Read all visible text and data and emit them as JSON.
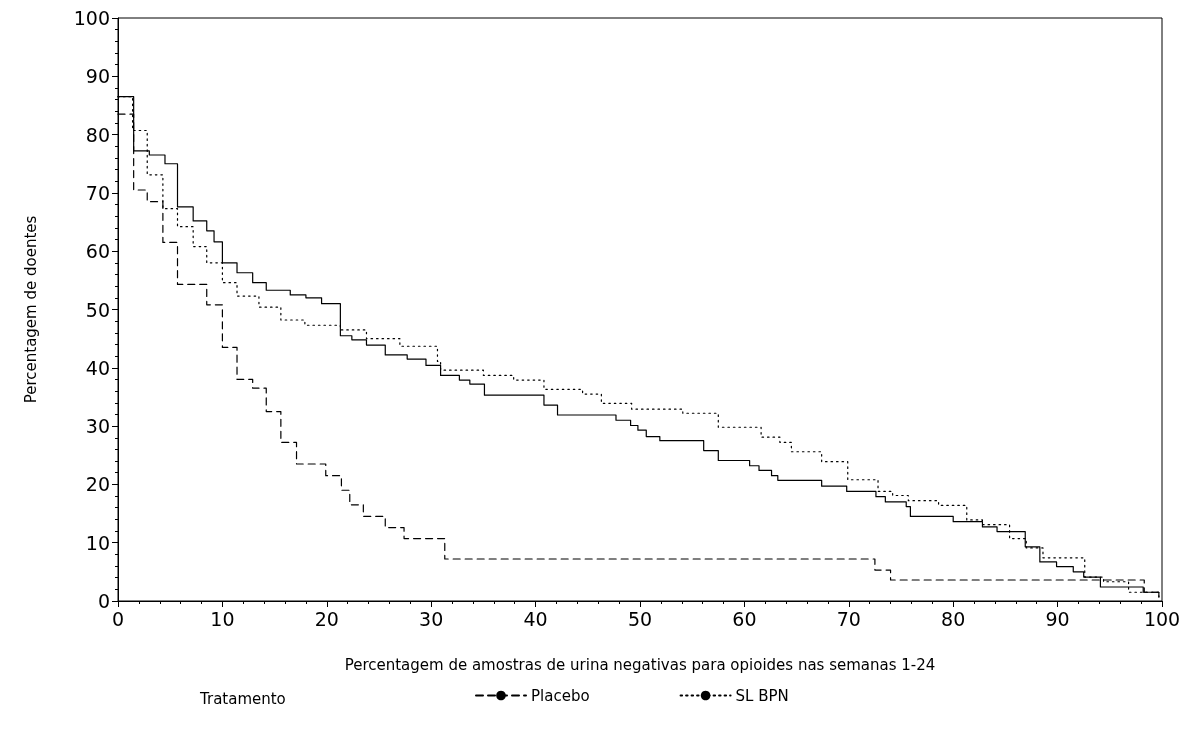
{
  "chart_data": {
    "type": "step",
    "xlabel": "Percentagem de amostras de urina negativas para opioides nas semanas 1-24",
    "ylabel": "Percentagem de doentes",
    "legend_title": "Tratamento",
    "xlim": [
      0,
      100
    ],
    "ylim": [
      0,
      100
    ],
    "xticks": [
      0,
      10,
      20,
      30,
      40,
      50,
      60,
      70,
      80,
      90,
      100
    ],
    "yticks": [
      0,
      10,
      20,
      30,
      40,
      50,
      60,
      70,
      80,
      90,
      100
    ],
    "grid": false,
    "legend": "bottom",
    "marker": "none",
    "series": [
      {
        "color": "#000000",
        "line_style": "solid",
        "x": [
          0,
          1.5,
          3,
          4.5,
          5.7,
          7.2,
          8.5,
          9.2,
          10,
          11.4,
          12.9,
          14.2,
          16.5,
          18,
          19.5,
          21.3,
          22.4,
          23.8,
          25.6,
          27.7,
          29.5,
          30.9,
          32.7,
          33.7,
          35.1,
          40.8,
          42.1,
          47.7,
          49.1,
          49.8,
          50.6,
          51.9,
          56.1,
          57.5,
          60.5,
          61.4,
          62.6,
          63.2,
          67.4,
          69.8,
          72.6,
          73.5,
          75.5,
          75.9,
          80,
          82.8,
          84.2,
          86.9,
          88.3,
          89.9,
          91.5,
          92.5,
          94.1,
          98.2,
          99.7
        ],
        "values": [
          86.5,
          77.2,
          76.5,
          75,
          67.6,
          65.2,
          63.5,
          61.6,
          58,
          56.3,
          54.6,
          53.3,
          52.5,
          52,
          51,
          45.5,
          44.8,
          43.9,
          42.2,
          41.5,
          40.4,
          38.7,
          37.9,
          37.2,
          35.3,
          33.6,
          31.9,
          31,
          30.1,
          29.3,
          28.2,
          27.5,
          25.8,
          24.1,
          23.2,
          22.4,
          21.5,
          20.7,
          19.7,
          18.8,
          17.9,
          17,
          16.2,
          14.5,
          13.6,
          12.7,
          11.9,
          9.3,
          6.7,
          5.9,
          5,
          4.1,
          2.4,
          1.5,
          0.7
        ]
      },
      {
        "name": "Placebo",
        "color": "#000000",
        "line_style": "dashed",
        "x": [
          0,
          1.5,
          2.8,
          4.3,
          5.7,
          8.5,
          10,
          11.4,
          12.9,
          14.2,
          15.6,
          17.1,
          19.9,
          21.4,
          22.2,
          23.5,
          25.6,
          27.4,
          31.3,
          72.5,
          74,
          98.3,
          99.7
        ],
        "values": [
          83.5,
          70.5,
          68.5,
          61.5,
          54.3,
          50.8,
          43.5,
          38,
          36.5,
          32.5,
          27.2,
          23.5,
          21.5,
          19,
          16.5,
          14.5,
          12.6,
          10.7,
          7.2,
          5.3,
          3.6,
          1.5,
          1.5
        ]
      },
      {
        "name": "SL BPN",
        "color": "#000000",
        "line_style": "dotted",
        "x": [
          0,
          1.4,
          2.8,
          4.3,
          5.7,
          7.2,
          8.5,
          10,
          11.4,
          13.5,
          15.6,
          17.9,
          21.3,
          23.8,
          27,
          30.6,
          30.9,
          35,
          37.9,
          40.8,
          44.5,
          46.3,
          49.2,
          54.1,
          57.5,
          61.6,
          63.4,
          64.5,
          67.4,
          69.9,
          72.8,
          74.2,
          75.7,
          78.6,
          81.3,
          82.8,
          85.4,
          87,
          88.6,
          92.6,
          94.4,
          96.8,
          99.7
        ],
        "values": [
          86.5,
          80.7,
          73.1,
          67.3,
          64.2,
          60.8,
          58,
          54.6,
          52.3,
          50.4,
          48.2,
          47.3,
          46.5,
          45,
          43.7,
          41.1,
          39.6,
          38.7,
          37.9,
          36.3,
          35.5,
          33.9,
          32.9,
          32.2,
          29.8,
          28.1,
          27.2,
          25.6,
          23.9,
          20.8,
          18.8,
          18.1,
          17.2,
          16.4,
          13.9,
          13.1,
          10.7,
          9.1,
          7.4,
          4.1,
          3.3,
          1.5,
          0.7
        ]
      }
    ]
  }
}
